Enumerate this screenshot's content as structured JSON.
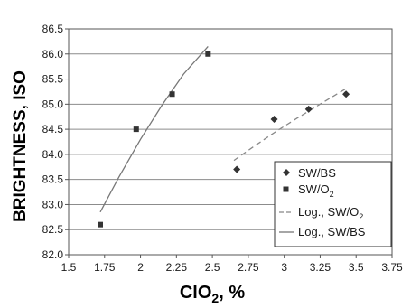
{
  "chart_data": {
    "type": "scatter",
    "xlabel": "ClO",
    "xlabel_subscript": "2",
    "xlabel_suffix": ", %",
    "ylabel": "BRIGHTNESS, ISO",
    "xlim": [
      1.5,
      3.75
    ],
    "ylim": [
      82.0,
      86.5
    ],
    "x_ticks": [
      "1.5",
      "1.75",
      "2",
      "2.25",
      "2.5",
      "2.75",
      "3",
      "3.25",
      "3.5",
      "3.75"
    ],
    "y_ticks": [
      "82.0",
      "82.5",
      "83.0",
      "83.5",
      "84.0",
      "84.5",
      "85.0",
      "85.5",
      "86.0",
      "86.5"
    ],
    "grid": "horizontal",
    "legend_position": "bottom-right",
    "series": [
      {
        "name": "SW/BS",
        "marker": "diamond",
        "color": "#333333",
        "x": [
          2.67,
          2.93,
          3.17,
          3.43
        ],
        "y": [
          83.7,
          84.7,
          84.9,
          85.2
        ]
      },
      {
        "name": "SW/O",
        "name_subscript": "2",
        "marker": "square",
        "color": "#333333",
        "x": [
          1.72,
          1.97,
          2.22,
          2.47
        ],
        "y": [
          82.6,
          84.5,
          85.2,
          86.0
        ]
      }
    ],
    "trendlines": [
      {
        "name": "Log., SW/O",
        "name_subscript": "2",
        "style": "dashed",
        "color": "#888888",
        "x": [
          2.65,
          2.8,
          2.95,
          3.1,
          3.25,
          3.43
        ],
        "y": [
          83.88,
          84.18,
          84.47,
          84.74,
          85.0,
          85.31
        ]
      },
      {
        "name": "Log., SW/BS",
        "style": "solid",
        "color": "#777777",
        "x": [
          1.72,
          1.85,
          2.0,
          2.15,
          2.3,
          2.47
        ],
        "y": [
          82.85,
          83.55,
          84.3,
          84.98,
          85.6,
          86.15
        ]
      }
    ]
  }
}
